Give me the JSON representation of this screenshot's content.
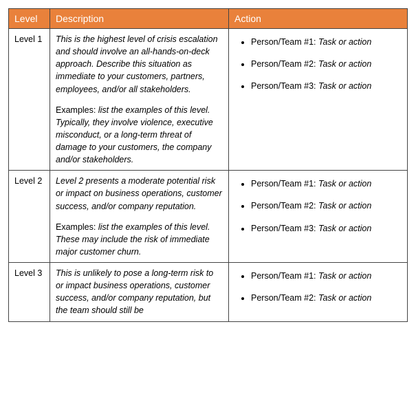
{
  "table": {
    "header_bg": "#e9813b",
    "header_fg": "#ffffff",
    "border_color": "#444444",
    "columns": [
      "Level",
      "Description",
      "Action"
    ],
    "rows": [
      {
        "level": "Level 1",
        "desc_main": "This is the highest level of crisis escalation and should involve an all-hands-on-deck approach. Describe this situation as immediate to your customers, partners, employees, and/or all stakeholders.",
        "desc_examples_label": "Examples: ",
        "desc_examples_body": "list the examples of this level. Typically, they involve violence, executive misconduct, or a long-term threat of damage to your customers, the company and/or stakeholders.",
        "actions": [
          {
            "who": "Person/Team #1: ",
            "task": "Task or action"
          },
          {
            "who": "Person/Team #2: ",
            "task": "Task or action"
          },
          {
            "who": "Person/Team #3: ",
            "task": "Task or action"
          }
        ]
      },
      {
        "level": "Level 2",
        "desc_main": "Level 2 presents a moderate potential risk or impact on business operations, customer success, and/or company reputation.",
        "desc_examples_label": "Examples: ",
        "desc_examples_body": "list the examples of this level. These may include the risk of immediate major customer churn.",
        "actions": [
          {
            "who": "Person/Team #1: ",
            "task": "Task or action"
          },
          {
            "who": "Person/Team #2: ",
            "task": "Task or action"
          },
          {
            "who": "Person/Team #3: ",
            "task": "Task or action"
          }
        ]
      },
      {
        "level": "Level 3",
        "desc_main": "This is unlikely to pose a long-term risk to or impact business operations, customer success, and/or company reputation, but the team should still be",
        "desc_examples_label": "",
        "desc_examples_body": "",
        "actions": [
          {
            "who": "Person/Team #1: ",
            "task": "Task or action"
          },
          {
            "who": "Person/Team #2: ",
            "task": "Task or action"
          }
        ]
      }
    ]
  }
}
